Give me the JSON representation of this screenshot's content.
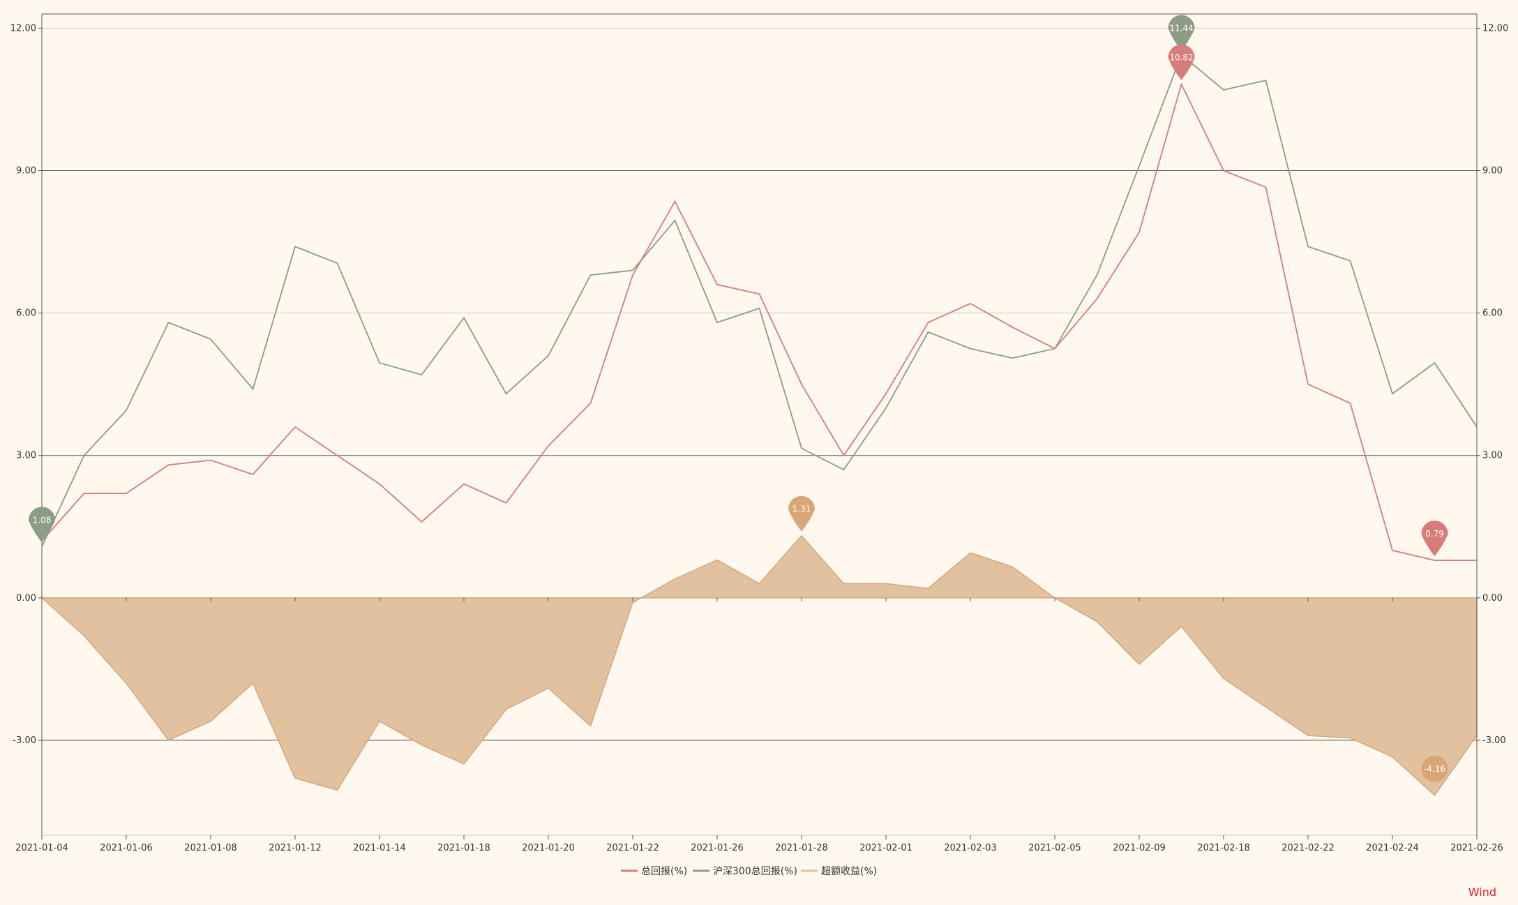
{
  "chart_data": {
    "type": "line",
    "x": [
      "2021-01-04",
      "2021-01-05",
      "2021-01-06",
      "2021-01-07",
      "2021-01-08",
      "2021-01-11",
      "2021-01-12",
      "2021-01-13",
      "2021-01-14",
      "2021-01-15",
      "2021-01-18",
      "2021-01-19",
      "2021-01-20",
      "2021-01-21",
      "2021-01-22",
      "2021-01-25",
      "2021-01-26",
      "2021-01-27",
      "2021-01-28",
      "2021-01-29",
      "2021-02-01",
      "2021-02-02",
      "2021-02-03",
      "2021-02-04",
      "2021-02-05",
      "2021-02-08",
      "2021-02-09",
      "2021-02-10",
      "2021-02-18",
      "2021-02-19",
      "2021-02-22",
      "2021-02-23",
      "2021-02-24",
      "2021-02-25",
      "2021-02-26"
    ],
    "x_tick_labels": [
      "2021-01-04",
      "2021-01-06",
      "2021-01-08",
      "2021-01-12",
      "2021-01-14",
      "2021-01-18",
      "2021-01-20",
      "2021-01-22",
      "2021-01-26",
      "2021-01-28",
      "2021-02-01",
      "2021-02-03",
      "2021-02-05",
      "2021-02-09",
      "2021-02-18",
      "2021-02-22",
      "2021-02-24",
      "2021-02-26"
    ],
    "y_ticks": [
      "12.00",
      "9.00",
      "6.00",
      "3.00",
      "0.00",
      "-3.00"
    ],
    "ylim": [
      -5.0,
      12.3
    ],
    "grid": true,
    "legend_position": "bottom",
    "series": [
      {
        "name": "总回报(%)",
        "type": "line",
        "color": "#d77b7b",
        "values": [
          1.2,
          2.2,
          2.2,
          2.8,
          2.9,
          2.6,
          3.6,
          3.0,
          2.4,
          1.6,
          2.4,
          2.0,
          3.2,
          4.1,
          6.8,
          8.35,
          6.6,
          6.4,
          4.5,
          3.0,
          4.3,
          5.8,
          6.2,
          5.7,
          5.25,
          6.3,
          7.7,
          10.82,
          9.0,
          8.65,
          4.5,
          4.1,
          1.0,
          0.79,
          0.79
        ]
      },
      {
        "name": "沪深300总回报(%)",
        "type": "line",
        "color": "#8c9c85",
        "values": [
          1.08,
          3.0,
          3.95,
          5.8,
          5.45,
          4.4,
          7.4,
          7.05,
          4.95,
          4.7,
          5.9,
          4.3,
          5.1,
          6.8,
          6.9,
          7.95,
          5.8,
          6.1,
          3.15,
          2.7,
          4.0,
          5.6,
          5.25,
          5.05,
          5.25,
          6.8,
          9.1,
          11.44,
          10.7,
          10.9,
          7.4,
          7.1,
          4.3,
          4.95,
          3.6
        ]
      },
      {
        "name": "超额收益(%)",
        "type": "area",
        "color": "#e2c19f",
        "values": [
          0.0,
          -0.8,
          -1.8,
          -3.0,
          -2.6,
          -1.8,
          -3.8,
          -4.05,
          -2.6,
          -3.1,
          -3.5,
          -2.35,
          -1.9,
          -2.7,
          -0.1,
          0.4,
          0.8,
          0.3,
          1.31,
          0.3,
          0.3,
          0.2,
          0.95,
          0.65,
          0.0,
          -0.5,
          -1.4,
          -0.6,
          -1.7,
          -2.3,
          -2.9,
          -2.95,
          -3.35,
          -4.16,
          -2.9
        ]
      }
    ],
    "markers": [
      {
        "label": "1.08",
        "series": 1,
        "index": 0,
        "color": "#8c9c85"
      },
      {
        "label": "11.44",
        "series": 1,
        "index": 27,
        "color": "#8c9c85"
      },
      {
        "label": "10.82",
        "series": 0,
        "index": 27,
        "color": "#d77b7b"
      },
      {
        "label": "0.79",
        "series": 0,
        "index": 33,
        "color": "#d77b7b"
      },
      {
        "label": "1.31",
        "series": 2,
        "index": 18,
        "color": "#d9a777"
      },
      {
        "label": "-4.16",
        "series": 2,
        "index": 33,
        "color": "#d9a777"
      }
    ]
  },
  "brand": {
    "label": "Wind",
    "color": "#d9232d"
  }
}
